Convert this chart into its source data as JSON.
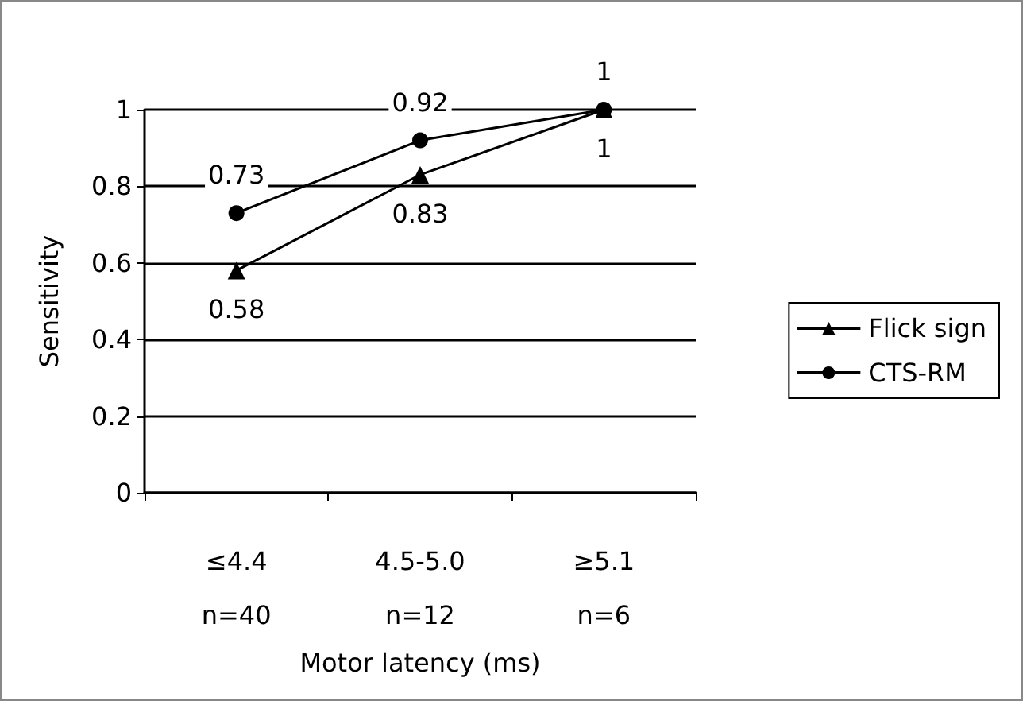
{
  "chart_data": {
    "type": "line",
    "xlabel": "Motor latency (ms)",
    "ylabel": "Sensitivity",
    "categories": [
      "≤4.4\nn=40",
      "4.5-5.0\nn=12",
      "≥5.1\nn=6"
    ],
    "series": [
      {
        "name": "Flick sign",
        "color": "#000000",
        "marker": "triangle",
        "values": [
          0.58,
          0.83,
          1
        ]
      },
      {
        "name": "CTS-RM",
        "color": "#000000",
        "marker": "circle",
        "values": [
          0.73,
          0.92,
          1
        ]
      }
    ],
    "ylim": [
      0,
      1
    ],
    "yticks": [
      0,
      0.2,
      0.4,
      0.6,
      0.8,
      1
    ],
    "grid": "y",
    "legend": "right",
    "data_labels": true
  }
}
